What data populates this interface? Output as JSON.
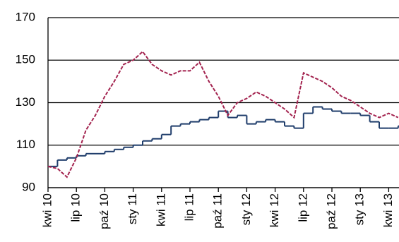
{
  "chart_data": {
    "type": "line",
    "categories": [
      "kwi 10",
      null,
      null,
      "lip 10",
      null,
      null,
      "paź 10",
      null,
      null,
      "sty 11",
      null,
      null,
      "kwi 11",
      null,
      null,
      "lip 11",
      null,
      null,
      "paź 11",
      null,
      null,
      "sty 12",
      null,
      null,
      "kwi 12",
      null,
      null,
      "lip 12",
      null,
      null,
      "paź 12",
      null,
      null,
      "sty 13",
      null,
      null,
      "kwi 13",
      null
    ],
    "series": [
      {
        "color": "#1f3d6b",
        "step": true,
        "values": [
          100,
          103,
          104,
          105,
          106,
          106,
          107,
          108,
          109,
          110,
          112,
          113,
          115,
          119,
          120,
          121,
          122,
          123,
          126,
          123,
          124,
          120,
          121,
          122,
          121,
          119,
          118,
          125,
          128,
          127,
          126,
          125,
          125,
          124,
          121,
          118,
          118,
          119
        ]
      },
      {
        "color": "#a3234f",
        "dashed": true,
        "values": [
          100,
          99,
          95,
          104,
          117,
          124,
          133,
          140,
          148,
          150,
          154,
          148,
          145,
          143,
          145,
          145,
          149,
          140,
          133,
          124,
          130,
          132,
          135,
          133,
          130,
          127,
          123,
          144,
          142,
          140,
          137,
          133,
          131,
          128,
          125,
          123,
          125,
          123
        ]
      }
    ],
    "ylim": [
      90,
      170
    ],
    "yticks": [
      90,
      110,
      130,
      150,
      170
    ],
    "grid": true
  }
}
